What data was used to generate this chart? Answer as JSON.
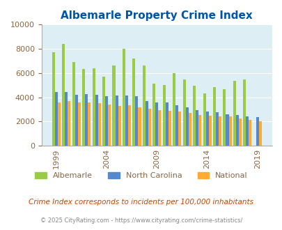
{
  "title": "Albemarle Property Crime Index",
  "years": [
    1999,
    2000,
    2001,
    2002,
    2003,
    2004,
    2005,
    2006,
    2007,
    2008,
    2009,
    2010,
    2011,
    2012,
    2013,
    2014,
    2015,
    2016,
    2017,
    2018,
    2019,
    2020
  ],
  "albemarle": [
    7700,
    8400,
    6900,
    6350,
    6400,
    5700,
    6650,
    8000,
    7200,
    6600,
    5150,
    5000,
    6000,
    5500,
    4950,
    4350,
    4850,
    4650,
    5350,
    5500,
    0,
    0
  ],
  "north_carolina": [
    4450,
    4450,
    4200,
    4250,
    4200,
    4100,
    4150,
    4150,
    4100,
    3700,
    3600,
    3550,
    3350,
    3150,
    2950,
    2800,
    2750,
    2600,
    2550,
    2400,
    2350,
    0
  ],
  "national": [
    3600,
    3700,
    3600,
    3550,
    3500,
    3400,
    3300,
    3350,
    3200,
    3050,
    2950,
    2900,
    2850,
    2700,
    2550,
    2500,
    2450,
    2450,
    2250,
    2150,
    2050,
    0
  ],
  "color_albemarle": "#99cc44",
  "color_nc": "#5588cc",
  "color_national": "#ffaa33",
  "bg_color": "#deeef5",
  "title_color": "#0055aa",
  "ylim": [
    0,
    10000
  ],
  "yticks": [
    0,
    2000,
    4000,
    6000,
    8000,
    10000
  ],
  "xlabel_color": "#886644",
  "note": "Crime Index corresponds to incidents per 100,000 inhabitants",
  "footer": "© 2025 CityRating.com - https://www.cityrating.com/crime-statistics/",
  "legend_labels": [
    "Albemarle",
    "North Carolina",
    "National"
  ]
}
